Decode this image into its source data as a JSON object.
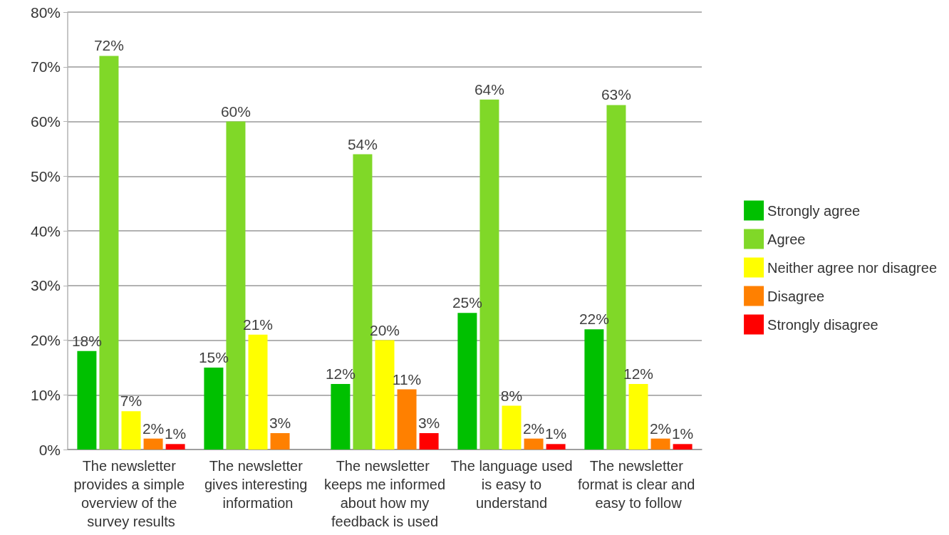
{
  "chart_data": {
    "type": "bar",
    "categories": [
      "The newsletter provides a simple overview of the survey results",
      "The newsletter gives interesting information",
      "The newsletter keeps me informed about how my feedback is used",
      "The language used is easy to understand",
      "The newsletter format is clear and easy to follow"
    ],
    "series": [
      {
        "name": "Strongly agree",
        "color": "#00c000",
        "values": [
          18,
          15,
          12,
          25,
          22
        ],
        "value_labels": [
          "18%",
          "15%",
          "12%",
          "25%",
          "22%"
        ]
      },
      {
        "name": "Agree",
        "color": "#80d828",
        "values": [
          72,
          60,
          54,
          64,
          63
        ],
        "value_labels": [
          "72%",
          "60%",
          "54%",
          "64%",
          "63%"
        ]
      },
      {
        "name": "Neither agree nor disagree",
        "color": "#ffff00",
        "values": [
          7,
          21,
          20,
          8,
          12
        ],
        "value_labels": [
          "7%",
          "21%",
          "20%",
          "8%",
          "12%"
        ]
      },
      {
        "name": "Disagree",
        "color": "#ff8000",
        "values": [
          2,
          3,
          11,
          2,
          2
        ],
        "value_labels": [
          "2%",
          "3%",
          "11%",
          "2%",
          "2%"
        ]
      },
      {
        "name": "Strongly disagree",
        "color": "#ff0000",
        "values": [
          1,
          null,
          3,
          1,
          1
        ],
        "value_labels": [
          "1%",
          null,
          "3%",
          "1%",
          "1%"
        ]
      }
    ],
    "ylim": [
      0,
      80
    ],
    "yticks": [
      {
        "value": 0,
        "label": "0%"
      },
      {
        "value": 10,
        "label": "10%"
      },
      {
        "value": 20,
        "label": "20%"
      },
      {
        "value": 30,
        "label": "30%"
      },
      {
        "value": 40,
        "label": "40%"
      },
      {
        "value": 50,
        "label": "50%"
      },
      {
        "value": 60,
        "label": "60%"
      },
      {
        "value": 70,
        "label": "70%"
      },
      {
        "value": 80,
        "label": "80%"
      }
    ],
    "grid": "y",
    "legend": "right"
  }
}
